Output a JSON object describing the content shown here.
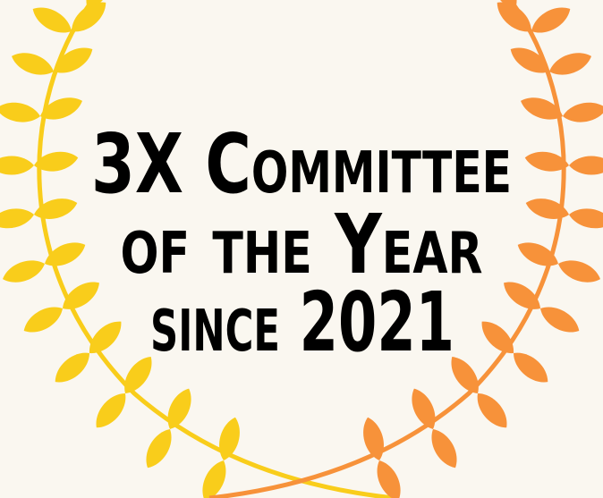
{
  "title_lines": [
    "3X Committee",
    "of the Year",
    "since 2021"
  ]
}
